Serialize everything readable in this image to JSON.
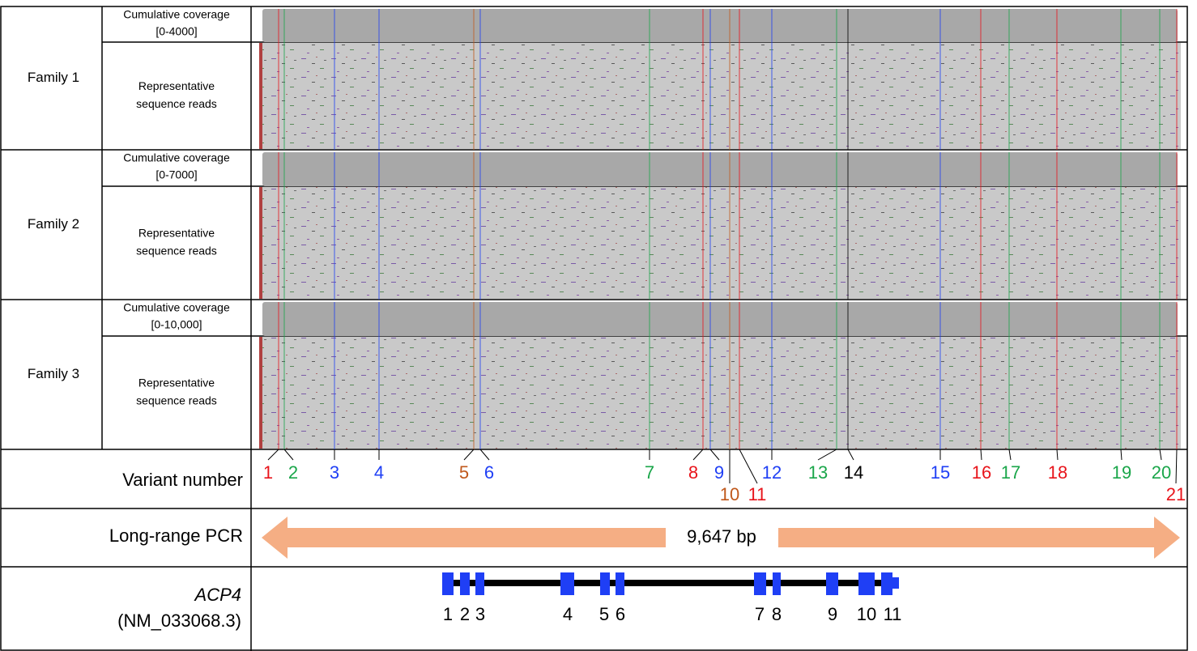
{
  "families": [
    {
      "label": "Family 1",
      "coverage_label": "Cumulative coverage",
      "coverage_range": "[0-4000]",
      "reads_label_1": "Representative",
      "reads_label_2": "sequence reads"
    },
    {
      "label": "Family 2",
      "coverage_label": "Cumulative coverage",
      "coverage_range": "[0-7000]",
      "reads_label_1": "Representative",
      "reads_label_2": "sequence reads"
    },
    {
      "label": "Family 3",
      "coverage_label": "Cumulative coverage",
      "coverage_range": "[0-10,000]",
      "reads_label_1": "Representative",
      "reads_label_2": "sequence reads"
    }
  ],
  "variant_label": "Variant number",
  "variants": [
    {
      "label": "1",
      "color": "#e8141b"
    },
    {
      "label": "2",
      "color": "#1aa64a"
    },
    {
      "label": "3",
      "color": "#1f3ff5"
    },
    {
      "label": "4",
      "color": "#1f3ff5"
    },
    {
      "label": "5",
      "color": "#c0581b"
    },
    {
      "label": "6",
      "color": "#1f3ff5"
    },
    {
      "label": "7",
      "color": "#1aa64a"
    },
    {
      "label": "8",
      "color": "#e8141b"
    },
    {
      "label": "9",
      "color": "#1f3ff5"
    },
    {
      "label": "10",
      "color": "#c0581b"
    },
    {
      "label": "11",
      "color": "#e8141b"
    },
    {
      "label": "12",
      "color": "#1f3ff5"
    },
    {
      "label": "13",
      "color": "#1aa64a"
    },
    {
      "label": "14",
      "color": "#000000"
    },
    {
      "label": "15",
      "color": "#1f3ff5"
    },
    {
      "label": "16",
      "color": "#e8141b"
    },
    {
      "label": "17",
      "color": "#1aa64a"
    },
    {
      "label": "18",
      "color": "#e8141b"
    },
    {
      "label": "19",
      "color": "#1aa64a"
    },
    {
      "label": "20",
      "color": "#1aa64a"
    },
    {
      "label": "21",
      "color": "#e8141b"
    }
  ],
  "pcr": {
    "label": "Long-range PCR",
    "length": "9,647 bp",
    "color": "#f5ae84"
  },
  "gene": {
    "name": "ACP4",
    "accession": "(NM_033068.3)",
    "color": "#1f3ff5",
    "exons": [
      "1",
      "2",
      "3",
      "4",
      "5",
      "6",
      "7",
      "8",
      "9",
      "10",
      "11"
    ]
  }
}
